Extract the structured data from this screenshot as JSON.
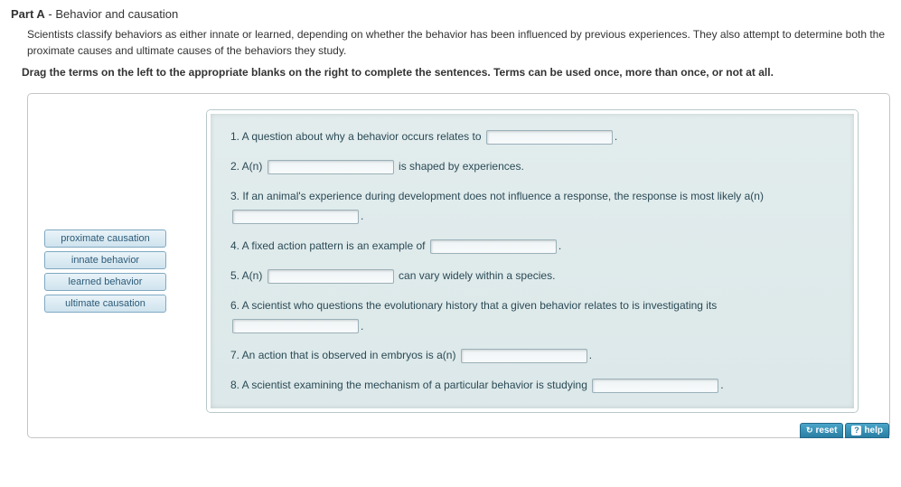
{
  "header": {
    "part_label": "Part A",
    "separator": " - ",
    "part_title": "Behavior and causation",
    "intro": "Scientists classify behaviors as either innate or learned, depending on whether the behavior has been influenced by previous experiences. They also attempt to determine both the proximate causes and ultimate causes of the behaviors they study.",
    "instructions": "Drag the terms on the left to the appropriate blanks on the right to complete the sentences. Terms can be used once, more than once, or not at all."
  },
  "terms": [
    "proximate causation",
    "innate behavior",
    "learned behavior",
    "ultimate causation"
  ],
  "statements": {
    "s1_pre": "1. A question about why a behavior occurs relates to ",
    "s1_post": ".",
    "s2_pre": "2. A(n) ",
    "s2_post": " is shaped by experiences.",
    "s3_pre": "3. If an animal's experience during development does not influence a response, the response is most likely a(n) ",
    "s3_post": ".",
    "s4_pre": "4. A fixed action pattern is an example of ",
    "s4_post": ".",
    "s5_pre": "5. A(n) ",
    "s5_post": " can vary widely within a species.",
    "s6_pre": "6. A scientist who questions the evolutionary history that a given behavior relates to is investigating its ",
    "s6_post": ".",
    "s7_pre": "7. An action that is observed in embryos is a(n) ",
    "s7_post": ".",
    "s8_pre": "8. A scientist examining the mechanism of a particular behavior is studying ",
    "s8_post": "."
  },
  "buttons": {
    "reset": "reset",
    "help": "help"
  }
}
